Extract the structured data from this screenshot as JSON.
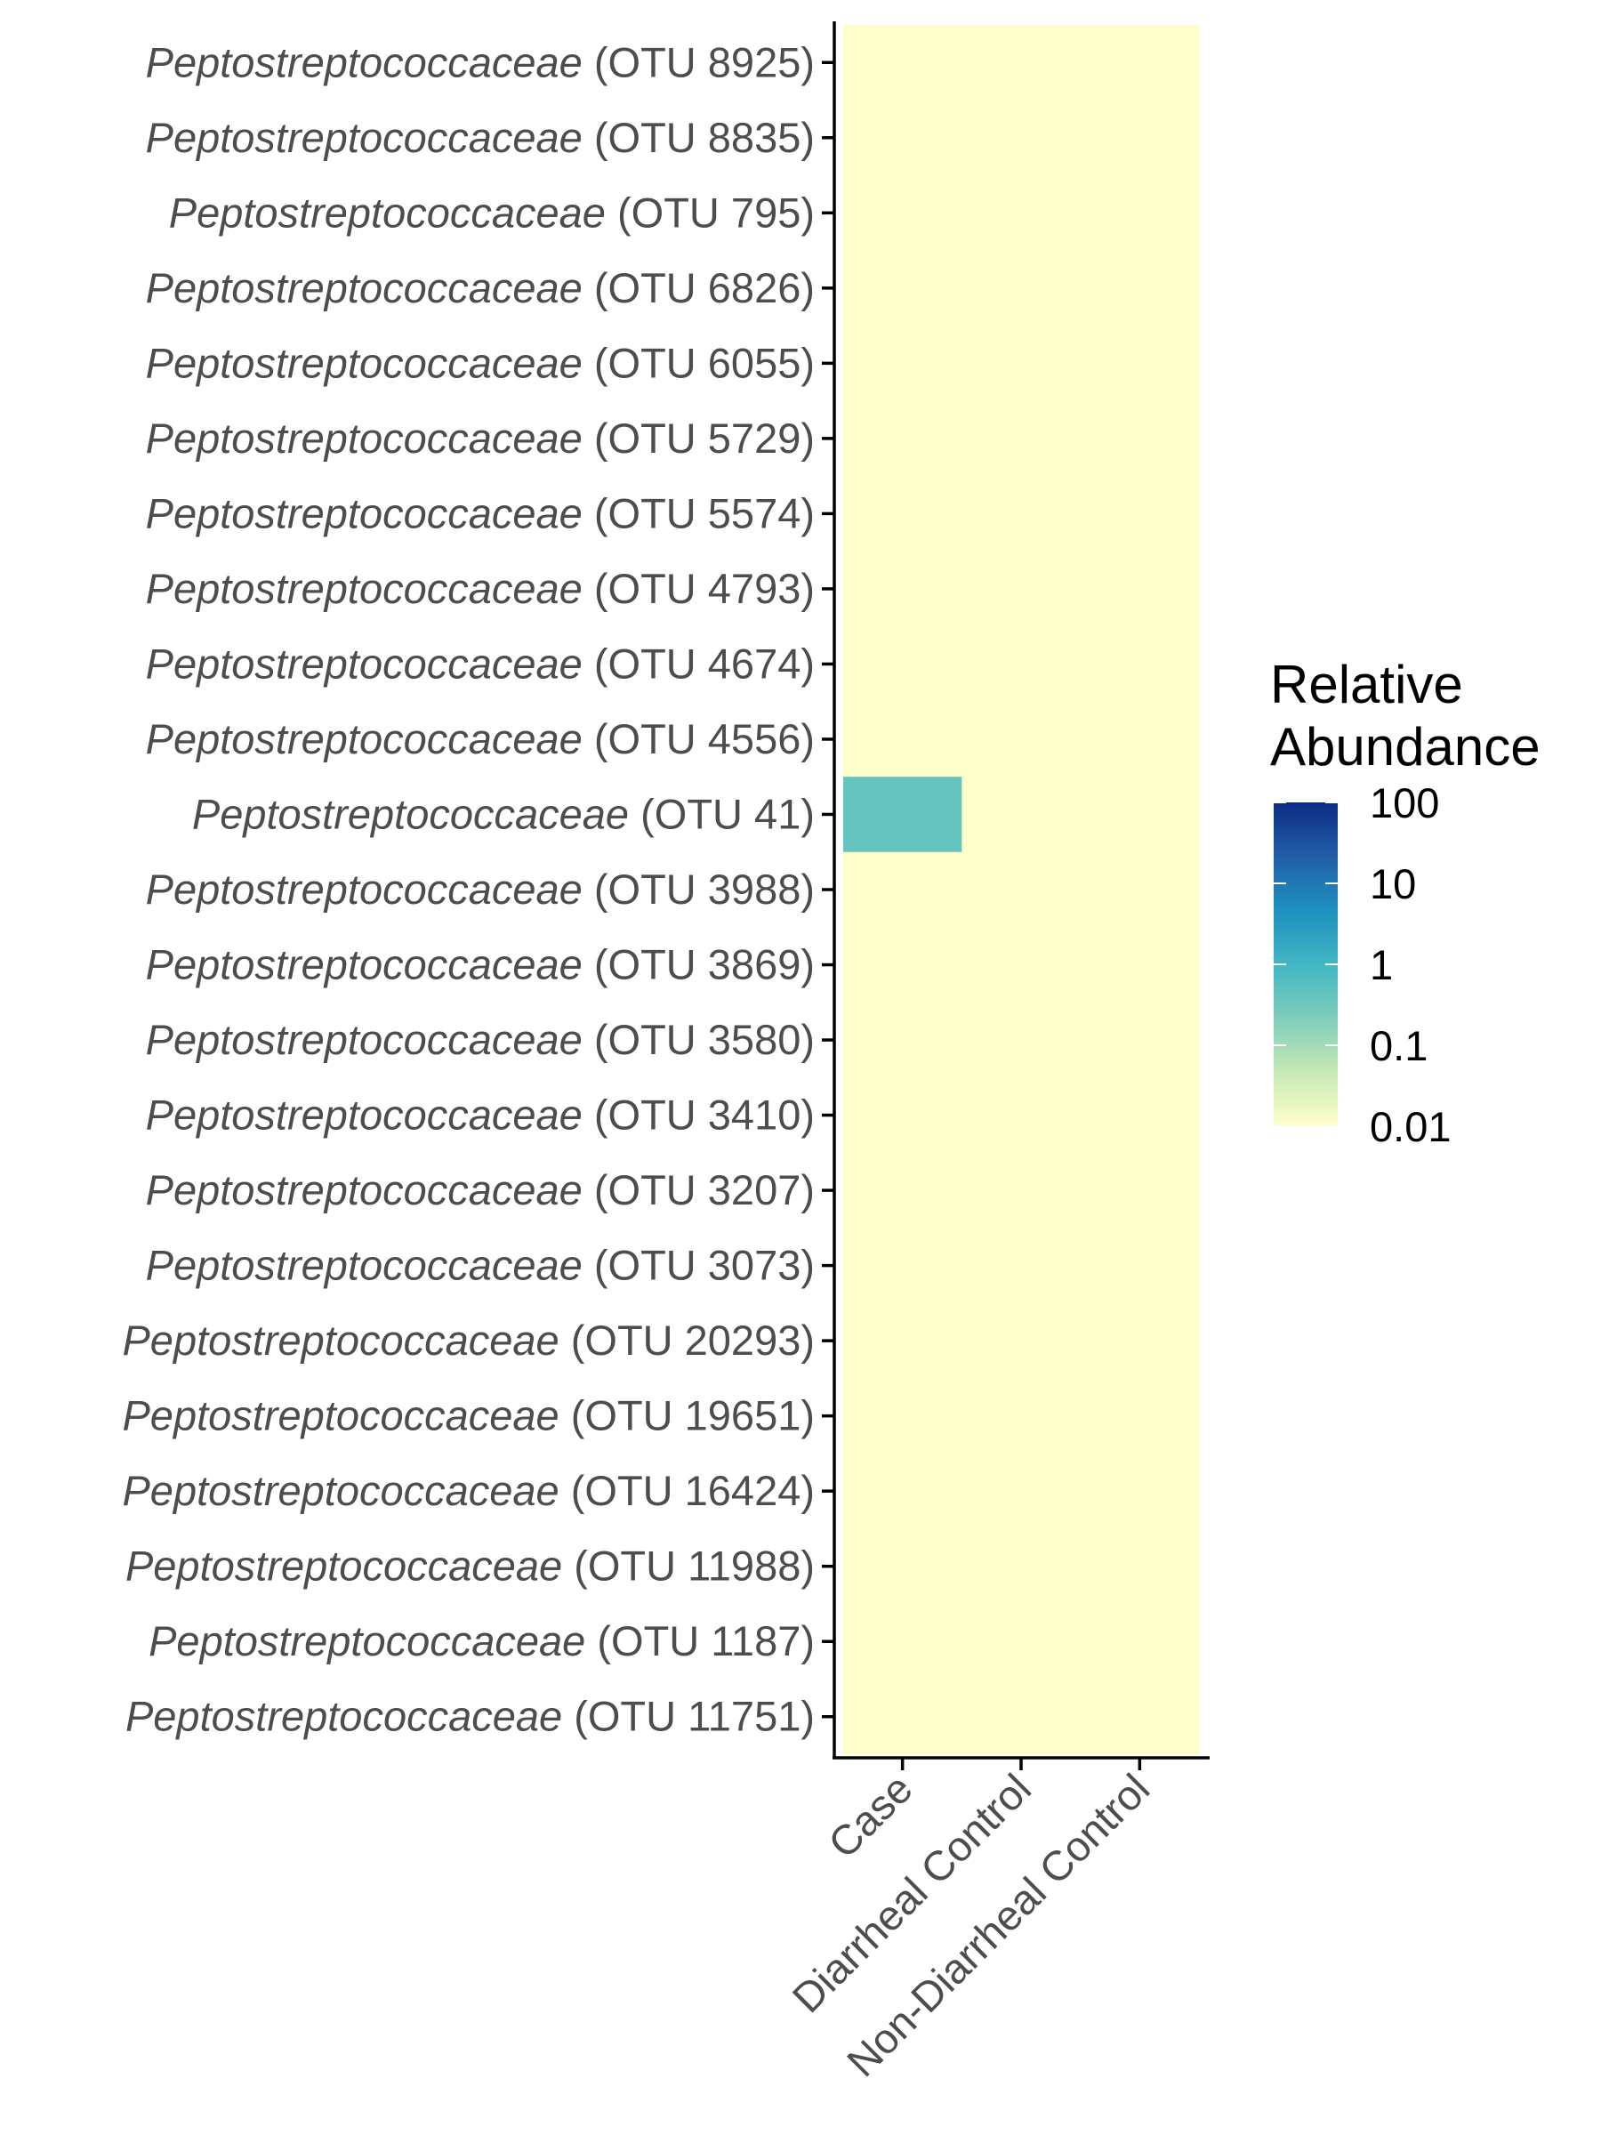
{
  "chart_data": {
    "type": "heatmap",
    "x_categories": [
      "Case",
      "Diarrheal Control",
      "Non-Diarrheal Control"
    ],
    "rows": [
      {
        "family": "Peptostreptococcaceae",
        "otu": "(OTU 8925)",
        "values": [
          0.01,
          0.01,
          0.01
        ]
      },
      {
        "family": "Peptostreptococcaceae",
        "otu": "(OTU 8835)",
        "values": [
          0.01,
          0.01,
          0.01
        ]
      },
      {
        "family": "Peptostreptococcaceae",
        "otu": "(OTU 795)",
        "values": [
          0.01,
          0.01,
          0.01
        ]
      },
      {
        "family": "Peptostreptococcaceae",
        "otu": "(OTU 6826)",
        "values": [
          0.01,
          0.01,
          0.01
        ]
      },
      {
        "family": "Peptostreptococcaceae",
        "otu": "(OTU 6055)",
        "values": [
          0.01,
          0.01,
          0.01
        ]
      },
      {
        "family": "Peptostreptococcaceae",
        "otu": "(OTU 5729)",
        "values": [
          0.01,
          0.01,
          0.01
        ]
      },
      {
        "family": "Peptostreptococcaceae",
        "otu": "(OTU 5574)",
        "values": [
          0.01,
          0.01,
          0.01
        ]
      },
      {
        "family": "Peptostreptococcaceae",
        "otu": "(OTU 4793)",
        "values": [
          0.01,
          0.01,
          0.01
        ]
      },
      {
        "family": "Peptostreptococcaceae",
        "otu": "(OTU 4674)",
        "values": [
          0.01,
          0.01,
          0.01
        ]
      },
      {
        "family": "Peptostreptococcaceae",
        "otu": "(OTU 4556)",
        "values": [
          0.01,
          0.01,
          0.01
        ]
      },
      {
        "family": "Peptostreptococcaceae",
        "otu": "(OTU 41)",
        "values": [
          0.4,
          0.01,
          0.01
        ]
      },
      {
        "family": "Peptostreptococcaceae",
        "otu": "(OTU 3988)",
        "values": [
          0.01,
          0.01,
          0.01
        ]
      },
      {
        "family": "Peptostreptococcaceae",
        "otu": "(OTU 3869)",
        "values": [
          0.01,
          0.01,
          0.01
        ]
      },
      {
        "family": "Peptostreptococcaceae",
        "otu": "(OTU 3580)",
        "values": [
          0.01,
          0.01,
          0.01
        ]
      },
      {
        "family": "Peptostreptococcaceae",
        "otu": "(OTU 3410)",
        "values": [
          0.01,
          0.01,
          0.01
        ]
      },
      {
        "family": "Peptostreptococcaceae",
        "otu": "(OTU 3207)",
        "values": [
          0.01,
          0.01,
          0.01
        ]
      },
      {
        "family": "Peptostreptococcaceae",
        "otu": "(OTU 3073)",
        "values": [
          0.01,
          0.01,
          0.01
        ]
      },
      {
        "family": "Peptostreptococcaceae",
        "otu": "(OTU 20293)",
        "values": [
          0.01,
          0.01,
          0.01
        ]
      },
      {
        "family": "Peptostreptococcaceae",
        "otu": "(OTU 19651)",
        "values": [
          0.01,
          0.01,
          0.01
        ]
      },
      {
        "family": "Peptostreptococcaceae",
        "otu": "(OTU 16424)",
        "values": [
          0.01,
          0.01,
          0.01
        ]
      },
      {
        "family": "Peptostreptococcaceae",
        "otu": "(OTU 11988)",
        "values": [
          0.01,
          0.01,
          0.01
        ]
      },
      {
        "family": "Peptostreptococcaceae",
        "otu": "(OTU 1187)",
        "values": [
          0.01,
          0.01,
          0.01
        ]
      },
      {
        "family": "Peptostreptococcaceae",
        "otu": "(OTU 11751)",
        "values": [
          0.01,
          0.01,
          0.01
        ]
      }
    ],
    "legend": {
      "title_lines": [
        "Relative",
        "Abundance"
      ],
      "scale": "log10",
      "range": [
        0.01,
        100
      ],
      "breaks": [
        100,
        10,
        1,
        0.1,
        0.01
      ],
      "labels": [
        "100",
        "10",
        "1",
        "0.1",
        "0.01"
      ],
      "colors": [
        "#ffffcc",
        "#c7e9b4",
        "#7fcdbb",
        "#41b6c4",
        "#1d91c0",
        "#225ea8",
        "#0c2c84"
      ]
    }
  }
}
